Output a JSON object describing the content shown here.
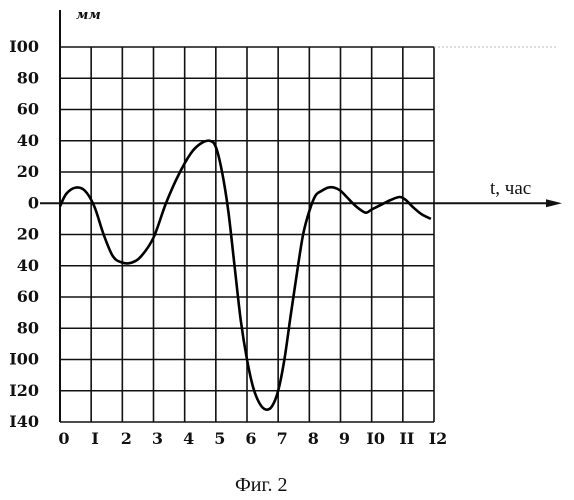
{
  "caption": "Фиг. 2",
  "chart_data": {
    "type": "line",
    "xlabel": "t, час",
    "ylabel": "мм",
    "x_ticks": [
      "0",
      "I",
      "2",
      "3",
      "4",
      "5",
      "6",
      "7",
      "8",
      "9",
      "I0",
      "II",
      "I2"
    ],
    "y_ticks": [
      {
        "label": "I00",
        "value": 100
      },
      {
        "label": "80",
        "value": 80
      },
      {
        "label": "60",
        "value": 60
      },
      {
        "label": "40",
        "value": 40
      },
      {
        "label": "20",
        "value": 20
      },
      {
        "label": "0",
        "value": 0
      },
      {
        "label": "20",
        "value": -20
      },
      {
        "label": "40",
        "value": -40
      },
      {
        "label": "60",
        "value": -60
      },
      {
        "label": "80",
        "value": -80
      },
      {
        "label": "I00",
        "value": -100
      },
      {
        "label": "I20",
        "value": -120
      },
      {
        "label": "I40",
        "value": -140
      }
    ],
    "xlim": [
      0,
      12
    ],
    "ylim": [
      -140,
      100
    ],
    "grid": true,
    "series": [
      {
        "x": [
          0,
          0.2,
          0.5,
          0.8,
          1.1,
          1.4,
          1.7,
          2.0,
          2.3,
          2.6,
          3.0,
          3.4,
          3.8,
          4.2,
          4.5,
          4.8,
          5.0,
          5.2,
          5.4,
          5.6,
          5.8,
          6.0,
          6.2,
          6.4,
          6.6,
          6.8,
          7.0,
          7.2,
          7.4,
          7.6,
          7.8,
          8.0,
          8.2,
          8.4,
          8.6,
          8.8,
          9.0,
          9.2,
          9.5,
          9.8,
          10.0,
          10.3,
          10.6,
          10.9,
          11.1,
          11.3,
          11.6,
          11.9
        ],
        "y": [
          -2,
          6,
          10,
          8,
          -2,
          -20,
          -34,
          -38,
          -38,
          -34,
          -22,
          0,
          18,
          32,
          38,
          40,
          36,
          20,
          -5,
          -40,
          -75,
          -100,
          -118,
          -128,
          -132,
          -130,
          -120,
          -100,
          -72,
          -45,
          -20,
          -5,
          5,
          8,
          10,
          10,
          8,
          4,
          -2,
          -6,
          -4,
          -1,
          2,
          4,
          2,
          -2,
          -7,
          -10
        ]
      }
    ]
  }
}
